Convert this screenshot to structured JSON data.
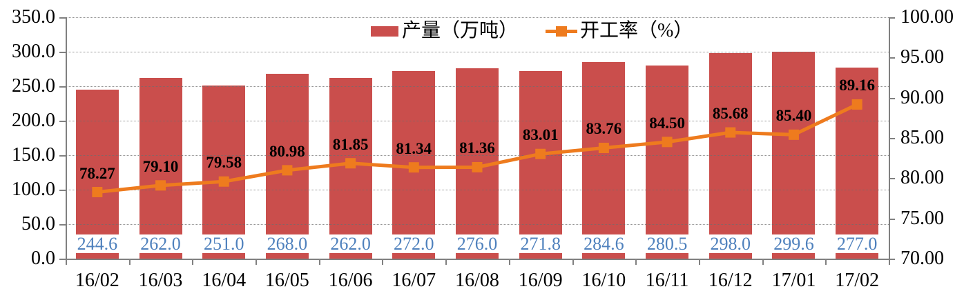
{
  "chart_data": {
    "type": "bar+line combo",
    "title": "",
    "categories": [
      "16/02",
      "16/03",
      "16/04",
      "16/05",
      "16/06",
      "16/07",
      "16/08",
      "16/09",
      "16/10",
      "16/11",
      "16/12",
      "17/01",
      "17/02"
    ],
    "series": [
      {
        "name": "产量（万吨）",
        "type": "bar",
        "axis": "left",
        "color": "#CA4E4C",
        "values": [
          244.6,
          262.0,
          251.0,
          268.0,
          262.0,
          272.0,
          276.0,
          271.8,
          284.6,
          280.5,
          298.0,
          299.6,
          277.0
        ],
        "label_decimals": 1,
        "label_color": "#4F81BD",
        "label_position": "inside-base-on-white"
      },
      {
        "name": "开工率（%）",
        "type": "line",
        "axis": "right",
        "color": "#EE7B1E",
        "marker": "square",
        "values": [
          78.27,
          79.1,
          79.58,
          80.98,
          81.85,
          81.34,
          81.36,
          83.01,
          83.76,
          84.5,
          85.68,
          85.4,
          89.16
        ],
        "label_decimals": 2,
        "label_color": "#000000",
        "label_position": "above"
      }
    ],
    "left_axis": {
      "min": 0,
      "max": 350,
      "step": 50,
      "decimals": 1
    },
    "right_axis": {
      "min": 70,
      "max": 100,
      "step": 5,
      "decimals": 2
    },
    "grid": "dotted horizontal lines at left-axis steps",
    "legend_position": "top-center"
  }
}
